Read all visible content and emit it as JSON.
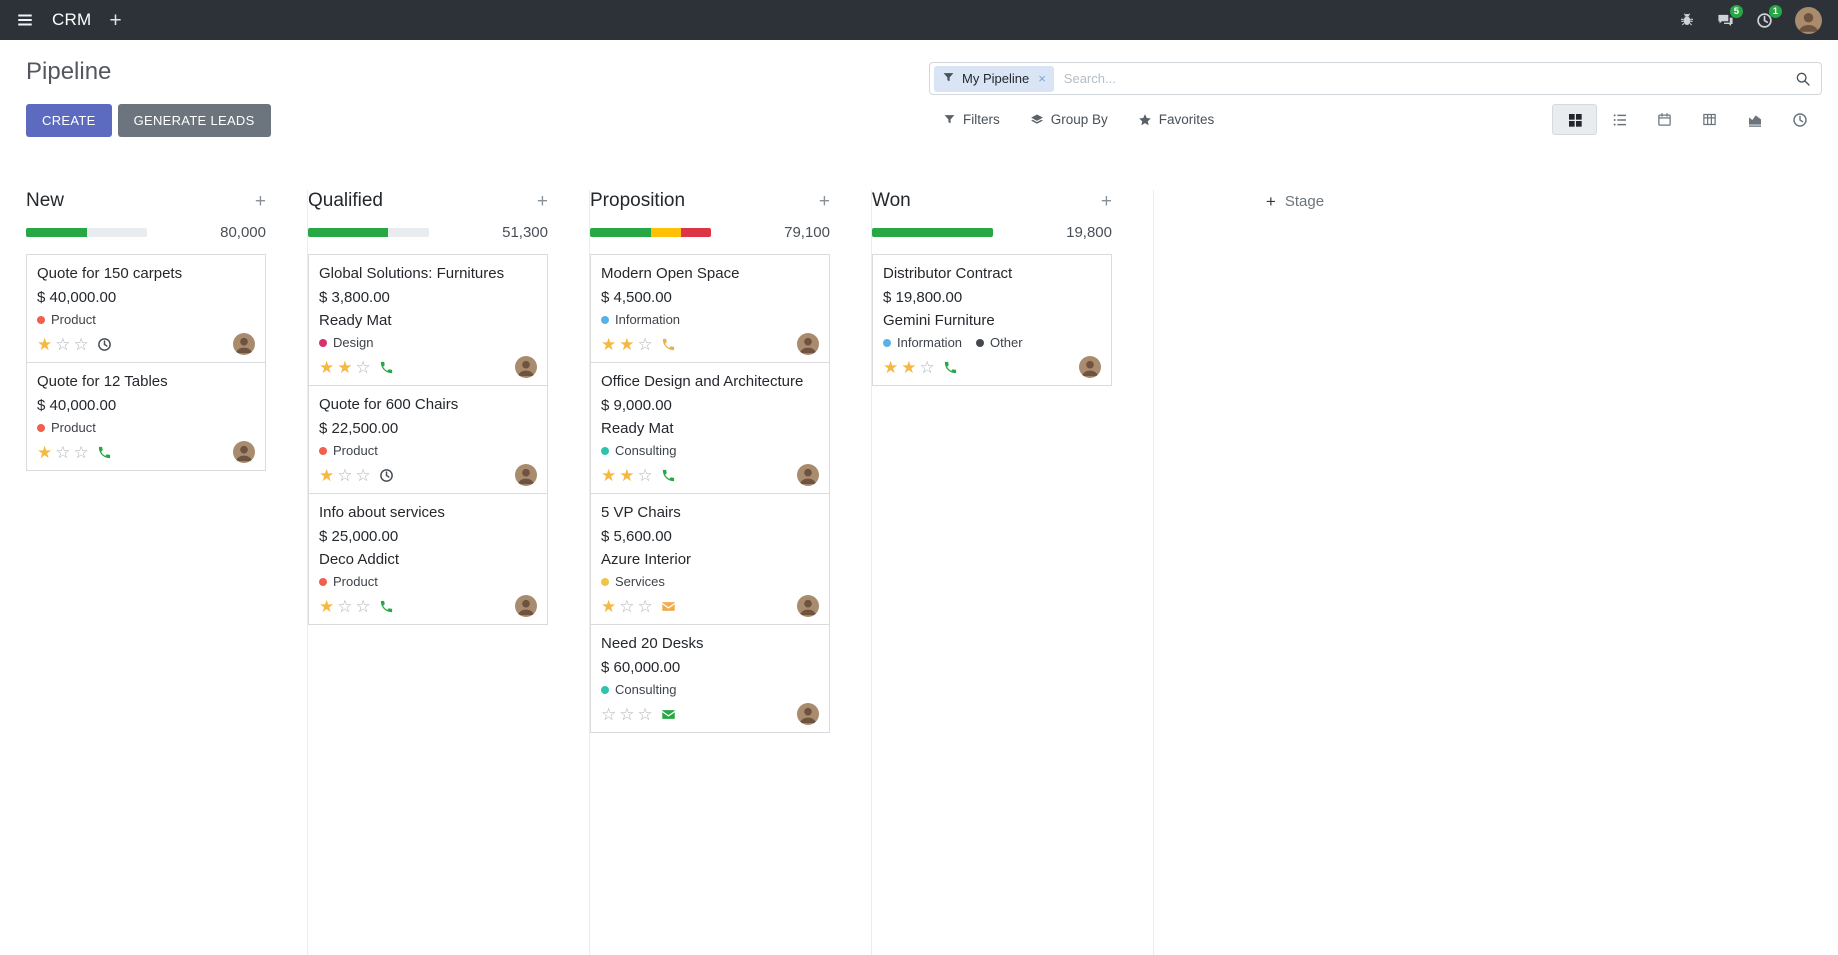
{
  "navbar": {
    "app_name": "CRM",
    "plus": "+",
    "messages_badge": "5",
    "activities_badge": "1"
  },
  "control_panel": {
    "title": "Pipeline",
    "create_label": "CREATE",
    "generate_leads_label": "GENERATE LEADS",
    "searchbar": {
      "facet_label": "My Pipeline",
      "facet_remove": "×",
      "placeholder": "Search..."
    },
    "filters_label": "Filters",
    "group_by_label": "Group By",
    "favorites_label": "Favorites",
    "view_switcher": {
      "views": [
        "kanban",
        "list",
        "calendar",
        "pivot",
        "graph",
        "activity"
      ],
      "active": "kanban"
    }
  },
  "board": {
    "plus": "+",
    "add_stage_label": "Stage",
    "columns": [
      {
        "title": "New",
        "counter": "80,000",
        "progress": [
          {
            "color": "#28a745",
            "percent": 50
          }
        ],
        "cards": [
          {
            "title": "Quote for 150 carpets",
            "amount": "$ 40,000.00",
            "tags": [
              {
                "label": "Product",
                "color": "#f06050"
              }
            ],
            "stars_filled": "★",
            "stars_empty": "☆☆",
            "activity": {
              "type": "clock",
              "color": "#495057"
            }
          },
          {
            "title": "Quote for 12 Tables",
            "amount": "$ 40,000.00",
            "tags": [
              {
                "label": "Product",
                "color": "#f06050"
              }
            ],
            "stars_filled": "★",
            "stars_empty": "☆☆",
            "activity": {
              "type": "phone",
              "color": "#28a745"
            }
          }
        ]
      },
      {
        "title": "Qualified",
        "counter": "51,300",
        "progress": [
          {
            "color": "#28a745",
            "percent": 66
          }
        ],
        "cards": [
          {
            "title": "Global Solutions: Furnitures",
            "amount": "$ 3,800.00",
            "partner": "Ready Mat",
            "tags": [
              {
                "label": "Design",
                "color": "#d6336c"
              }
            ],
            "stars_filled": "★★",
            "stars_empty": "☆",
            "activity": {
              "type": "phone",
              "color": "#28a745"
            }
          },
          {
            "title": "Quote for 600 Chairs",
            "amount": "$ 22,500.00",
            "tags": [
              {
                "label": "Product",
                "color": "#f06050"
              }
            ],
            "stars_filled": "★",
            "stars_empty": "☆☆",
            "activity": {
              "type": "clock",
              "color": "#495057"
            }
          },
          {
            "title": "Info about services",
            "amount": "$ 25,000.00",
            "partner": "Deco Addict",
            "tags": [
              {
                "label": "Product",
                "color": "#f06050"
              }
            ],
            "stars_filled": "★",
            "stars_empty": "☆☆",
            "activity": {
              "type": "phone",
              "color": "#28a745"
            }
          }
        ]
      },
      {
        "title": "Proposition",
        "counter": "79,100",
        "progress": [
          {
            "color": "#28a745",
            "percent": 50
          },
          {
            "color": "#ffc107",
            "percent": 25
          },
          {
            "color": "#dc3545",
            "percent": 25
          }
        ],
        "cards": [
          {
            "title": "Modern Open Space",
            "amount": "$ 4,500.00",
            "tags": [
              {
                "label": "Information",
                "color": "#56b3e6"
              }
            ],
            "stars_filled": "★★",
            "stars_empty": "☆",
            "activity": {
              "type": "phone",
              "color": "#f0ad4e"
            }
          },
          {
            "title": "Office Design and Architecture",
            "amount": "$ 9,000.00",
            "partner": "Ready Mat",
            "tags": [
              {
                "label": "Consulting",
                "color": "#31c2ae"
              }
            ],
            "stars_filled": "★★",
            "stars_empty": "☆",
            "activity": {
              "type": "phone",
              "color": "#28a745"
            }
          },
          {
            "title": "5 VP Chairs",
            "amount": "$ 5,600.00",
            "partner": "Azure Interior",
            "tags": [
              {
                "label": "Services",
                "color": "#ecc649"
              }
            ],
            "stars_filled": "★",
            "stars_empty": "☆☆",
            "activity": {
              "type": "envelope",
              "color": "#f0ad4e"
            }
          },
          {
            "title": "Need 20 Desks",
            "amount": "$ 60,000.00",
            "tags": [
              {
                "label": "Consulting",
                "color": "#31c2ae"
              }
            ],
            "stars_filled": "",
            "stars_empty": "☆☆☆",
            "activity": {
              "type": "envelope",
              "color": "#28a745"
            }
          }
        ]
      },
      {
        "title": "Won",
        "counter": "19,800",
        "progress": [
          {
            "color": "#28a745",
            "percent": 100
          }
        ],
        "cards": [
          {
            "title": "Distributor Contract",
            "amount": "$ 19,800.00",
            "partner": "Gemini Furniture",
            "tags": [
              {
                "label": "Information",
                "color": "#56b3e6"
              },
              {
                "label": "Other",
                "color": "#44494e"
              }
            ],
            "stars_filled": "★★",
            "stars_empty": "☆",
            "activity": {
              "type": "phone",
              "color": "#28a745"
            }
          }
        ]
      }
    ]
  }
}
